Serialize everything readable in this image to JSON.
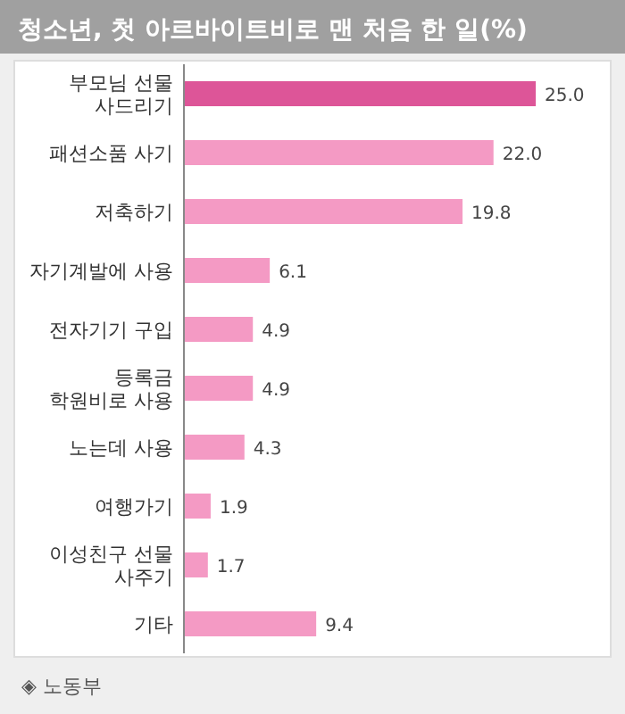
{
  "chart_data": {
    "type": "bar",
    "orientation": "horizontal",
    "title": "청소년, 첫 아르바이트비로 맨 처음 한 일(%)",
    "categories": [
      "부모님 선물\n사드리기",
      "패션소품 사기",
      "저축하기",
      "자기계발에 사용",
      "전자기기 구입",
      "등록금\n학원비로 사용",
      "노는데 사용",
      "여행가기",
      "이성친구 선물\n사주기",
      "기타"
    ],
    "values": [
      25.0,
      22.0,
      19.8,
      6.1,
      4.9,
      4.9,
      4.3,
      1.9,
      1.7,
      9.4
    ],
    "value_labels": [
      "25.0",
      "22.0",
      "19.8",
      "6.1",
      "4.9",
      "4.9",
      "4.3",
      "1.9",
      "1.7",
      "9.4"
    ],
    "colors": [
      "#dd5598",
      "#f49ac4",
      "#f49ac4",
      "#f49ac4",
      "#f49ac4",
      "#f49ac4",
      "#f49ac4",
      "#f49ac4",
      "#f49ac4",
      "#f49ac4"
    ],
    "annotations": [
      "◈ 노동부"
    ]
  }
}
